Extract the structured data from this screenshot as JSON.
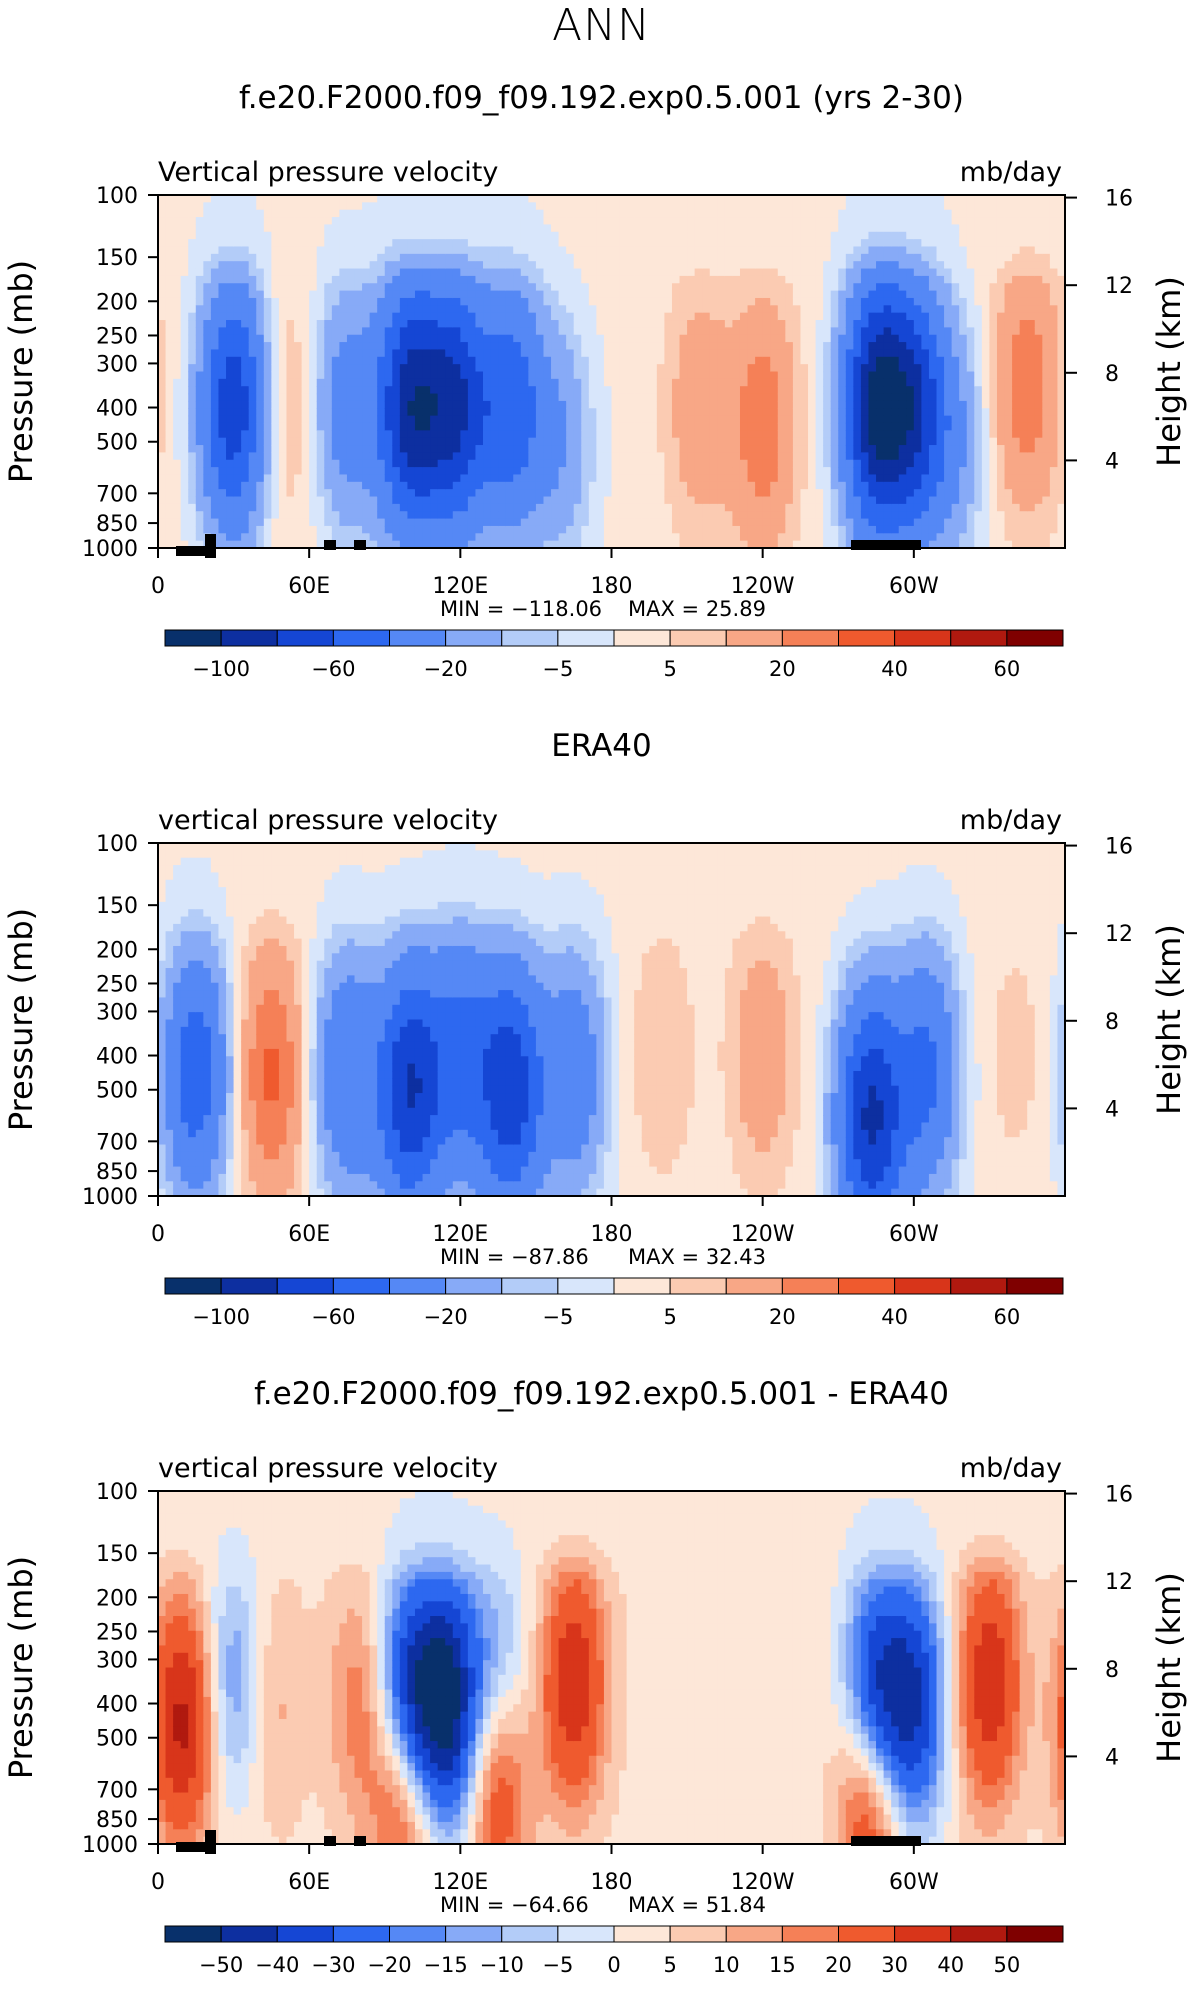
{
  "page_title": "ANN",
  "colors": {
    "palette": [
      "#08306b",
      "#0d2fa0",
      "#1546d4",
      "#2d68f0",
      "#5588f5",
      "#87aaf7",
      "#b3ccf8",
      "#d8e6fb",
      "#fde7d8",
      "#fbcbb2",
      "#f8a786",
      "#f58057",
      "#ef5a2e",
      "#d8351a",
      "#b0190f",
      "#7f0000"
    ]
  },
  "chart_data": [
    {
      "type": "heatmap",
      "title": "f.e20.F2000.f09_f09.192.exp0.5.001 (yrs 2-30)",
      "left_label": "Vertical pressure velocity",
      "right_label": "mb/day",
      "ylabel": "Pressure (mb)",
      "y2label": "Height (km)",
      "x_ticks": [
        "0",
        "60E",
        "120E",
        "180",
        "120W",
        "60W"
      ],
      "y_ticks": [
        "100",
        "150",
        "200",
        "250",
        "300",
        "400",
        "500",
        "700",
        "850",
        "1000"
      ],
      "y2_ticks": [
        "16",
        "12",
        "8",
        "4"
      ],
      "min_label": "MIN = −118.06",
      "max_label": "MAX =   25.89",
      "colorbar_labels": [
        "−100",
        "−60",
        "−20",
        "−5",
        "5",
        "20",
        "40",
        "60"
      ],
      "features": [
        {
          "lon": 30,
          "p": 400,
          "v": -75
        },
        {
          "lon": 50,
          "p": 400,
          "v": 10
        },
        {
          "lon": 75,
          "p": 400,
          "v": -30
        },
        {
          "lon": 100,
          "p": 400,
          "v": -90
        },
        {
          "lon": 118,
          "p": 400,
          "v": -80
        },
        {
          "lon": 140,
          "p": 400,
          "v": -55
        },
        {
          "lon": 160,
          "p": 500,
          "v": -20
        },
        {
          "lon": 215,
          "p": 400,
          "v": 15
        },
        {
          "lon": 240,
          "p": 450,
          "v": 25
        },
        {
          "lon": 285,
          "p": 400,
          "v": -100
        },
        {
          "lon": 300,
          "p": 400,
          "v": -70
        },
        {
          "lon": 315,
          "p": 500,
          "v": -20
        },
        {
          "lon": 345,
          "p": 350,
          "v": 25
        }
      ]
    },
    {
      "type": "heatmap",
      "title": "ERA40",
      "left_label": "vertical pressure velocity",
      "right_label": "mb/day",
      "ylabel": "Pressure (mb)",
      "y2label": "Height (km)",
      "x_ticks": [
        "0",
        "60E",
        "120E",
        "180",
        "120W",
        "60W"
      ],
      "y_ticks": [
        "100",
        "150",
        "200",
        "250",
        "300",
        "400",
        "500",
        "700",
        "850",
        "1000"
      ],
      "y2_ticks": [
        "16",
        "12",
        "8",
        "4"
      ],
      "min_label": "MIN =  −87.86",
      "max_label": "MAX =   32.43",
      "colorbar_labels": [
        "−100",
        "−60",
        "−20",
        "−5",
        "5",
        "20",
        "40",
        "60"
      ],
      "features": [
        {
          "lon": 15,
          "p": 450,
          "v": -55
        },
        {
          "lon": 45,
          "p": 450,
          "v": 30
        },
        {
          "lon": 75,
          "p": 450,
          "v": -40
        },
        {
          "lon": 100,
          "p": 500,
          "v": -80
        },
        {
          "lon": 120,
          "p": 400,
          "v": -45
        },
        {
          "lon": 140,
          "p": 500,
          "v": -75
        },
        {
          "lon": 165,
          "p": 450,
          "v": -35
        },
        {
          "lon": 200,
          "p": 400,
          "v": 8
        },
        {
          "lon": 240,
          "p": 400,
          "v": 15
        },
        {
          "lon": 283,
          "p": 600,
          "v": -85
        },
        {
          "lon": 305,
          "p": 450,
          "v": -45
        },
        {
          "lon": 340,
          "p": 400,
          "v": 5
        }
      ]
    },
    {
      "type": "heatmap",
      "title": "f.e20.F2000.f09_f09.192.exp0.5.001 - ERA40",
      "left_label": "vertical pressure velocity",
      "right_label": "mb/day",
      "ylabel": "Pressure (mb)",
      "y2label": "Height (km)",
      "x_ticks": [
        "0",
        "60E",
        "120E",
        "180",
        "120W",
        "60W"
      ],
      "y_ticks": [
        "100",
        "150",
        "200",
        "250",
        "300",
        "400",
        "500",
        "700",
        "850",
        "1000"
      ],
      "y2_ticks": [
        "16",
        "12",
        "8",
        "4"
      ],
      "min_label": "MIN =  −64.66",
      "max_label": "MAX =   51.84",
      "colorbar_labels": [
        "−50",
        "−40",
        "−30",
        "−20",
        "−15",
        "−10",
        "−5",
        "0",
        "5",
        "10",
        "15",
        "20",
        "30",
        "40",
        "50"
      ],
      "features": [
        {
          "lon": 10,
          "p": 450,
          "v": 40
        },
        {
          "lon": 30,
          "p": 350,
          "v": -20
        },
        {
          "lon": 45,
          "p": 400,
          "v": 10
        },
        {
          "lon": 80,
          "p": 400,
          "v": 15
        },
        {
          "lon": 100,
          "p": 400,
          "v": -50
        },
        {
          "lon": 115,
          "p": 400,
          "v": -55
        },
        {
          "lon": 98,
          "p": 700,
          "v": 35
        },
        {
          "lon": 135,
          "p": 350,
          "v": -20
        },
        {
          "lon": 135,
          "p": 650,
          "v": 30
        },
        {
          "lon": 165,
          "p": 350,
          "v": 35
        },
        {
          "lon": 285,
          "p": 400,
          "v": -50
        },
        {
          "lon": 300,
          "p": 400,
          "v": -40
        },
        {
          "lon": 330,
          "p": 350,
          "v": 35
        },
        {
          "lon": 283,
          "p": 700,
          "v": 40
        }
      ]
    }
  ]
}
